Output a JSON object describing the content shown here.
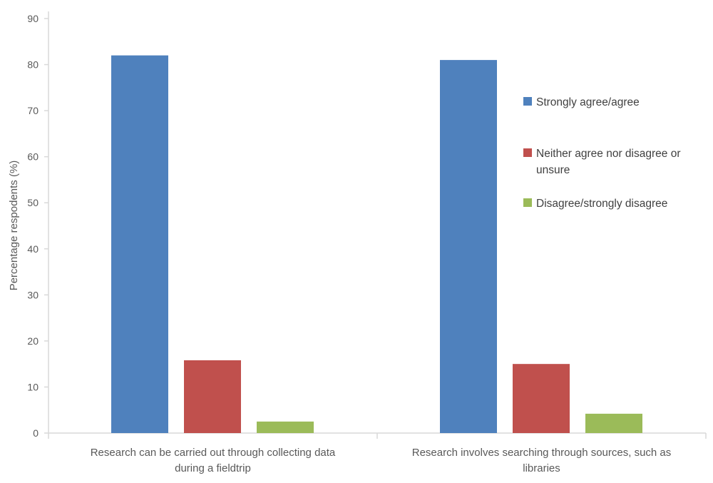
{
  "chart_data": {
    "type": "bar",
    "title": "",
    "xlabel": "",
    "ylabel": "Percentage respodents (%)",
    "ylim": [
      0,
      90
    ],
    "yticks": [
      "0",
      "10",
      "20",
      "30",
      "40",
      "50",
      "60",
      "70",
      "80",
      "90"
    ],
    "grid": false,
    "legend_position": "right",
    "categories": [
      [
        "Research can be carried out through collecting data",
        "during a fieldtrip"
      ],
      [
        "Research involves searching through sources, such as",
        "libraries"
      ]
    ],
    "series": [
      {
        "name": [
          "Strongly agree/agree"
        ],
        "color": "#4F81BD",
        "values": [
          82,
          81
        ]
      },
      {
        "name": [
          "Neither agree nor disagree or",
          "unsure"
        ],
        "color": "#C0504D",
        "values": [
          15.8,
          15
        ]
      },
      {
        "name": [
          "Disagree/strongly disagree"
        ],
        "color": "#9BBB59",
        "values": [
          2.5,
          4.2
        ]
      }
    ]
  }
}
